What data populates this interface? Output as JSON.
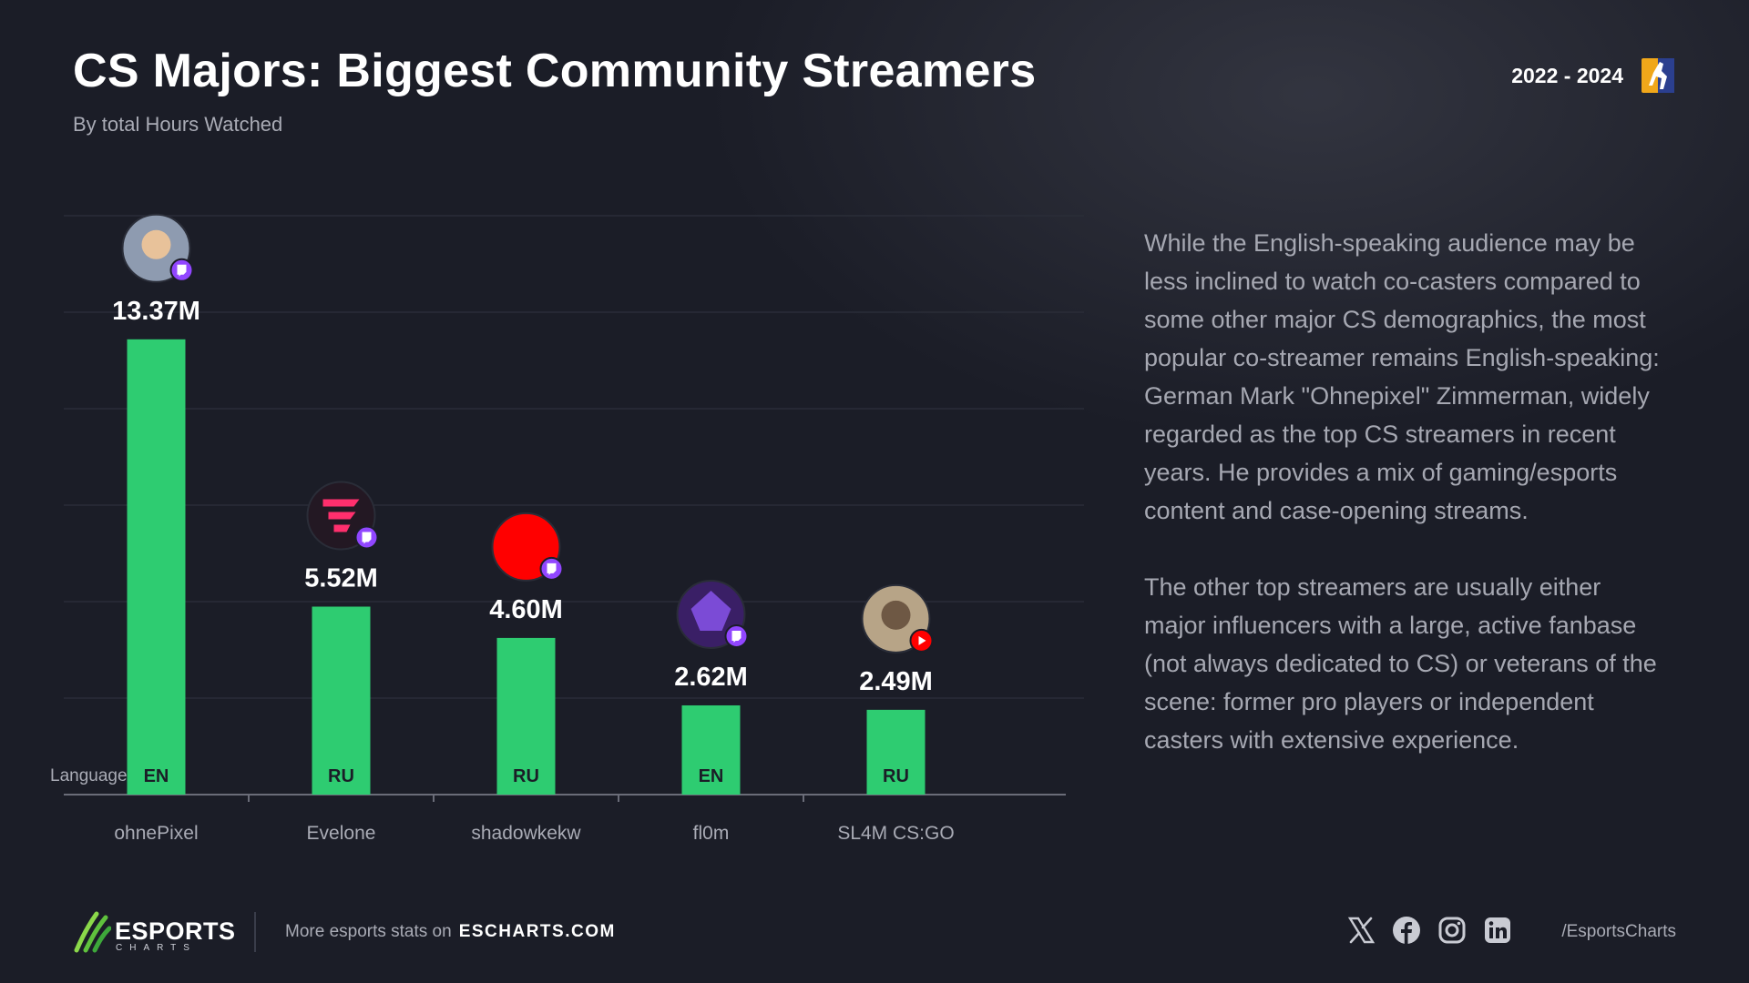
{
  "header": {
    "title": "CS Majors: Biggest Community Streamers",
    "subtitle": "By total Hours Watched",
    "period": "2022 - 2024",
    "game_logo_icon": "cs-player-icon"
  },
  "chart_data": {
    "type": "bar",
    "title": "CS Majors: Biggest Community Streamers",
    "subtitle": "By total Hours Watched",
    "categories": [
      "ohnePixel",
      "Evelone",
      "shadowkekw",
      "fl0m",
      "SL4M CS:GO"
    ],
    "values": [
      13.37,
      5.52,
      4.6,
      2.62,
      2.49
    ],
    "value_labels": [
      "13.37M",
      "5.52M",
      "4.60M",
      "2.62M",
      "2.49M"
    ],
    "languages": [
      "EN",
      "RU",
      "RU",
      "EN",
      "RU"
    ],
    "language_label": "Language:",
    "platforms": [
      "twitch",
      "twitch",
      "twitch",
      "twitch",
      "youtube"
    ],
    "ylim": [
      0,
      17
    ],
    "grid": true,
    "bar_color": "#2ecc71",
    "xlabel": "",
    "ylabel": ""
  },
  "description": {
    "paragraphs": [
      "While the English-speaking audience may be less inclined to watch co-casters compared to some other major CS demographics, the most popular co-streamer remains English-speaking: German Mark \"Ohnepixel\" Zimmerman, widely regarded as the top CS streamers in recent years. He provides a mix of gaming/esports content and case-opening streams.",
      "The other top streamers are usually either major influencers with a large, active fanbase (not always dedicated to CS) or veterans of the scene: former pro players or independent casters with extensive experience."
    ]
  },
  "footer": {
    "logo_word": "ESPORTS",
    "logo_sub": "CHARTS",
    "more_text": "More esports stats on",
    "site": "ESCHARTS.COM",
    "handle": "/EsportsCharts",
    "social_icons": [
      "x-icon",
      "facebook-icon",
      "instagram-icon",
      "linkedin-icon"
    ]
  },
  "colors": {
    "background": "#1b1d27",
    "accent": "#2ecc71",
    "twitch": "#9146ff",
    "youtube": "#ff0000"
  }
}
